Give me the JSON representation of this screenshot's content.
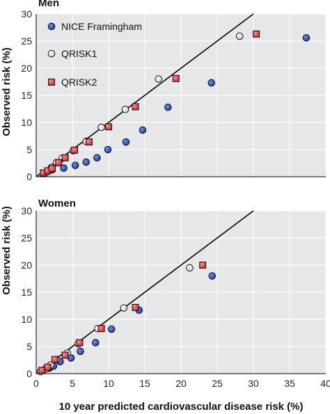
{
  "colors": {
    "plot_bg": "#e6e7e8",
    "grid": "#ffffff",
    "line": "#000000",
    "nice_fill": "#1d3fa8",
    "qrisk1_fill": "#f2f2f2",
    "qrisk2_fill": "#d42a2a"
  },
  "chart_data": [
    {
      "type": "scatter",
      "title": "Men",
      "xlabel": "",
      "ylabel": "Observed risk (%)",
      "xlim": [
        0,
        40
      ],
      "ylim": [
        0,
        30
      ],
      "xticks": [
        0,
        5,
        10,
        15,
        20,
        25,
        30,
        35,
        40
      ],
      "yticks": [
        0,
        5,
        10,
        15,
        20,
        25,
        30
      ],
      "show_xtick_labels": false,
      "grid": true,
      "legend": "top-left",
      "reference_line": {
        "x": [
          0,
          30
        ],
        "y": [
          0,
          30
        ]
      },
      "series": [
        {
          "name": "NICE Framingham",
          "marker": "circle",
          "color": "#1d3fa8",
          "x": [
            1.5,
            2.2,
            3.8,
            5.4,
            6.9,
            8.4,
            9.9,
            12.4,
            14.7,
            18.2,
            24.2,
            37.3
          ],
          "y": [
            0.9,
            1.3,
            1.6,
            2.1,
            2.7,
            3.5,
            5.0,
            6.4,
            8.6,
            12.8,
            17.3,
            25.6
          ]
        },
        {
          "name": "QRISK1",
          "marker": "circle",
          "color": "#f2f2f2",
          "x": [
            1.5,
            2.1,
            2.8,
            3.6,
            5.1,
            6.9,
            9.0,
            12.3,
            16.9,
            28.1
          ],
          "y": [
            0.9,
            1.7,
            2.6,
            3.4,
            4.8,
            6.5,
            9.1,
            12.4,
            18.0,
            25.9
          ]
        },
        {
          "name": "QRISK2",
          "marker": "square",
          "color": "#d42a2a",
          "x": [
            1.0,
            1.6,
            2.2,
            3.1,
            4.0,
            5.3,
            7.3,
            10.0,
            13.7,
            19.3,
            30.4
          ],
          "y": [
            0.7,
            1.1,
            1.5,
            2.6,
            3.5,
            4.9,
            6.4,
            9.2,
            12.9,
            18.1,
            26.3
          ]
        }
      ]
    },
    {
      "type": "scatter",
      "title": "Women",
      "xlabel": "10 year predicted cardiovascular disease risk (%)",
      "ylabel": "Observed risk (%)",
      "xlim": [
        0,
        40
      ],
      "ylim": [
        0,
        30
      ],
      "xticks": [
        0,
        5,
        10,
        15,
        20,
        25,
        30,
        35,
        40
      ],
      "yticks": [
        0,
        5,
        10,
        15,
        20,
        25,
        30
      ],
      "show_xtick_labels": true,
      "grid": true,
      "legend": "none",
      "reference_line": {
        "x": [
          0,
          30
        ],
        "y": [
          0,
          30
        ]
      },
      "series": [
        {
          "name": "NICE Framingham",
          "marker": "circle",
          "color": "#1d3fa8",
          "x": [
            0.6,
            1.2,
            1.8,
            2.4,
            3.3,
            4.8,
            6.1,
            8.2,
            10.4,
            14.2,
            24.3
          ],
          "y": [
            0.4,
            0.8,
            1.0,
            1.4,
            2.2,
            2.9,
            4.1,
            5.7,
            8.2,
            11.7,
            18.0
          ]
        },
        {
          "name": "QRISK1",
          "marker": "circle",
          "color": "#f2f2f2",
          "x": [
            0.6,
            1.3,
            2.0,
            2.8,
            4.3,
            5.8,
            8.5,
            12.1,
            21.2
          ],
          "y": [
            0.4,
            0.9,
            1.6,
            2.6,
            3.8,
            5.5,
            8.3,
            12.1,
            19.5
          ]
        },
        {
          "name": "QRISK2",
          "marker": "square",
          "color": "#d42a2a",
          "x": [
            0.8,
            1.6,
            2.6,
            4.0,
            6.0,
            9.0,
            13.7,
            23.0
          ],
          "y": [
            0.6,
            1.2,
            2.6,
            3.4,
            5.7,
            8.3,
            12.2,
            20.0
          ]
        }
      ]
    }
  ]
}
